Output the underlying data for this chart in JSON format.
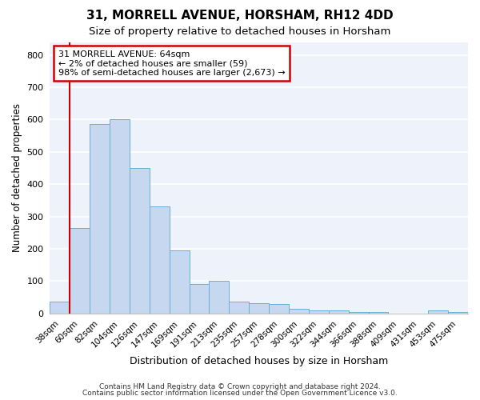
{
  "title1": "31, MORRELL AVENUE, HORSHAM, RH12 4DD",
  "title2": "Size of property relative to detached houses in Horsham",
  "xlabel": "Distribution of detached houses by size in Horsham",
  "ylabel": "Number of detached properties",
  "categories": [
    "38sqm",
    "60sqm",
    "82sqm",
    "104sqm",
    "126sqm",
    "147sqm",
    "169sqm",
    "191sqm",
    "213sqm",
    "235sqm",
    "257sqm",
    "278sqm",
    "300sqm",
    "322sqm",
    "344sqm",
    "366sqm",
    "388sqm",
    "409sqm",
    "431sqm",
    "453sqm",
    "475sqm"
  ],
  "values": [
    37,
    265,
    585,
    600,
    450,
    330,
    195,
    90,
    100,
    37,
    32,
    30,
    14,
    10,
    8,
    5,
    5,
    0,
    0,
    8,
    5
  ],
  "bar_color": "#c5d8f0",
  "bar_edge_color": "#6baed6",
  "ylim": [
    0,
    840
  ],
  "yticks": [
    0,
    100,
    200,
    300,
    400,
    500,
    600,
    700,
    800
  ],
  "annotation_text": "31 MORRELL AVENUE: 64sqm\n← 2% of detached houses are smaller (59)\n98% of semi-detached houses are larger (2,673) →",
  "annotation_box_color": "#cc0000",
  "annotation_bg": "#ffffff",
  "footer1": "Contains HM Land Registry data © Crown copyright and database right 2024.",
  "footer2": "Contains public sector information licensed under the Open Government Licence v3.0.",
  "background_color": "#eef2fb",
  "grid_color": "#ffffff",
  "fig_bg": "#ffffff",
  "red_line_index": 1
}
